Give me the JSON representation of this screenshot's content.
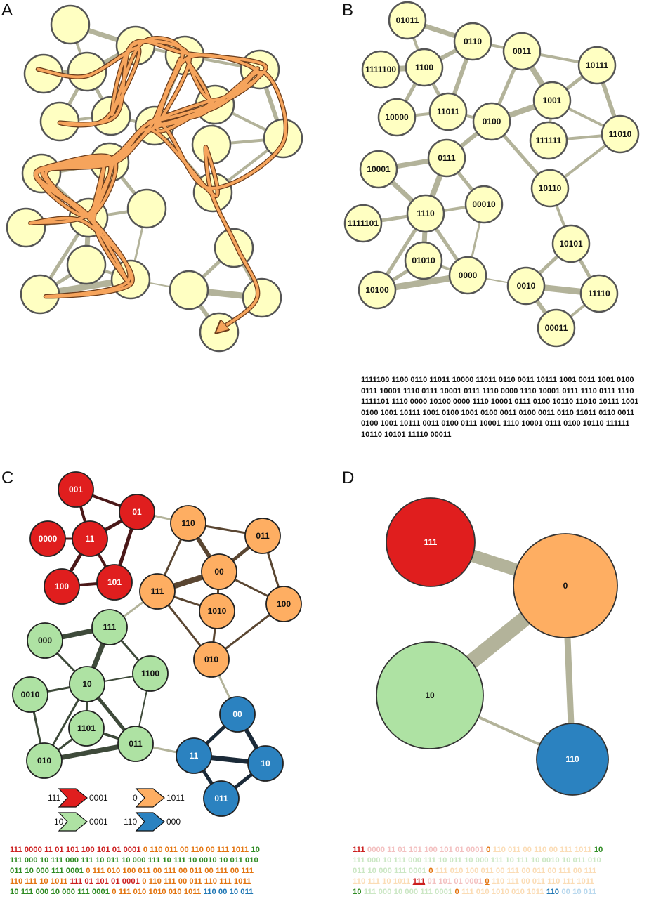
{
  "panel_labels": [
    "A",
    "B",
    "C",
    "D"
  ],
  "colors": {
    "node_fill": "#ffffc2",
    "node_stroke": "#555555",
    "edge": "#b3b39a",
    "trajectory": "#f6a45c",
    "trajectory_edge": "#6b3d1c",
    "red": "#e01e1e",
    "orange": "#feae62",
    "green": "#aee2a3",
    "blue": "#2b82c0"
  },
  "panel_b": {
    "nodes": [
      "01011",
      "0110",
      "1111100",
      "1100",
      "0011",
      "10111",
      "10000",
      "11011",
      "0100",
      "1001",
      "11010",
      "111111",
      "10001",
      "0111",
      "10110",
      "00010",
      "1111101",
      "1110",
      "10101",
      "01010",
      "0000",
      "0010",
      "11110",
      "10100",
      "00011"
    ],
    "sequence": "1111100 1100 0110 11011 10000 11011 0110 0011 10111 1001 0011 1001 0100 0111 10001 1110 0111 10001 0111 1110 0000 1110 10001 0111 1110 0111 1110 1111101 1110 0000 10100 0000 1110 10001 0111 0100 10110 11010 10111 1001 0100 1001 10111 1001 0100 1001 0100 0011 0100 0011 0110 11011 0110 0011 0100 1001 10111 0011 0100 0111 10001 1110 10001 0111 0100 10110 111111 10110 10101 11110 00011"
  },
  "panel_c": {
    "nodes": {
      "red": [
        "001",
        "01",
        "0000",
        "11",
        "100",
        "101"
      ],
      "orange": [
        "110",
        "011",
        "00",
        "111",
        "1010",
        "100",
        "010"
      ],
      "green": [
        "111",
        "000",
        "1100",
        "10",
        "0010",
        "1101",
        "011",
        "010"
      ],
      "blue": [
        "00",
        "11",
        "10",
        "011"
      ]
    },
    "legend": [
      {
        "prefix": "111",
        "suffix": "0001"
      },
      {
        "prefix": "0",
        "suffix": "1011"
      },
      {
        "prefix": "10",
        "suffix": "0001"
      },
      {
        "prefix": "110",
        "suffix": "000"
      }
    ],
    "sequence": [
      [
        [
          "red",
          "111 0000 11 01 101 100 101 01 0001"
        ],
        [
          "orange",
          "0 110 011 00 110 00 111 1011"
        ],
        [
          "green",
          "10"
        ]
      ],
      [
        [
          "green",
          "111 000 10 111 000 111 10 011 10 000 111 10 111 10 0010 10 011 010"
        ]
      ],
      [
        [
          "green",
          "011 10 000 111 0001"
        ],
        [
          "orange",
          "0 111 010 100 011 00 111 00 011 00 111 00 111"
        ]
      ],
      [
        [
          "orange",
          "110 111 10 1011"
        ],
        [
          "red",
          "111 01 101 01 0001"
        ],
        [
          "orange",
          "0 110 111 00 011 110 111 1011"
        ]
      ],
      [
        [
          "green",
          "10 111 000 10 000 111 0001"
        ],
        [
          "orange",
          "0 111 010 1010 010 1011"
        ],
        [
          "blue",
          "110 00 10 011"
        ]
      ]
    ]
  },
  "panel_d": {
    "nodes": [
      "111",
      "0",
      "10",
      "110"
    ],
    "sequence": [
      [
        [
          "red",
          "111",
          1
        ],
        [
          "red",
          "0000 11 01 101 100 101 01 0001",
          0
        ],
        [
          "orange",
          "0",
          1
        ],
        [
          "orange",
          "110 011 00 110 00 111 1011",
          0
        ],
        [
          "green",
          "10",
          1
        ]
      ],
      [
        [
          "green",
          "111 000 10 111 000 111 10 011 10 000 111 10 111 10 0010 10 011 010",
          0
        ]
      ],
      [
        [
          "green",
          "011 10 000 111 0001",
          0
        ],
        [
          "orange",
          "0",
          1
        ],
        [
          "orange",
          "111 010 100 011 00 111 00 011 00 111 00 111",
          0
        ]
      ],
      [
        [
          "orange",
          "110 111 10 1011",
          0
        ],
        [
          "red",
          "111",
          1
        ],
        [
          "red",
          "01 101 01 0001",
          0
        ],
        [
          "orange",
          "0",
          1
        ],
        [
          "orange",
          "110 111 00 011 110 111 1011",
          0
        ]
      ],
      [
        [
          "green",
          "10",
          1
        ],
        [
          "green",
          "111 000 10 000 111 0001",
          0
        ],
        [
          "orange",
          "0",
          1
        ],
        [
          "orange",
          "111 010 1010 010 1011",
          0
        ],
        [
          "blue",
          "110",
          1
        ],
        [
          "blue",
          "00 10 011",
          0
        ]
      ]
    ]
  }
}
